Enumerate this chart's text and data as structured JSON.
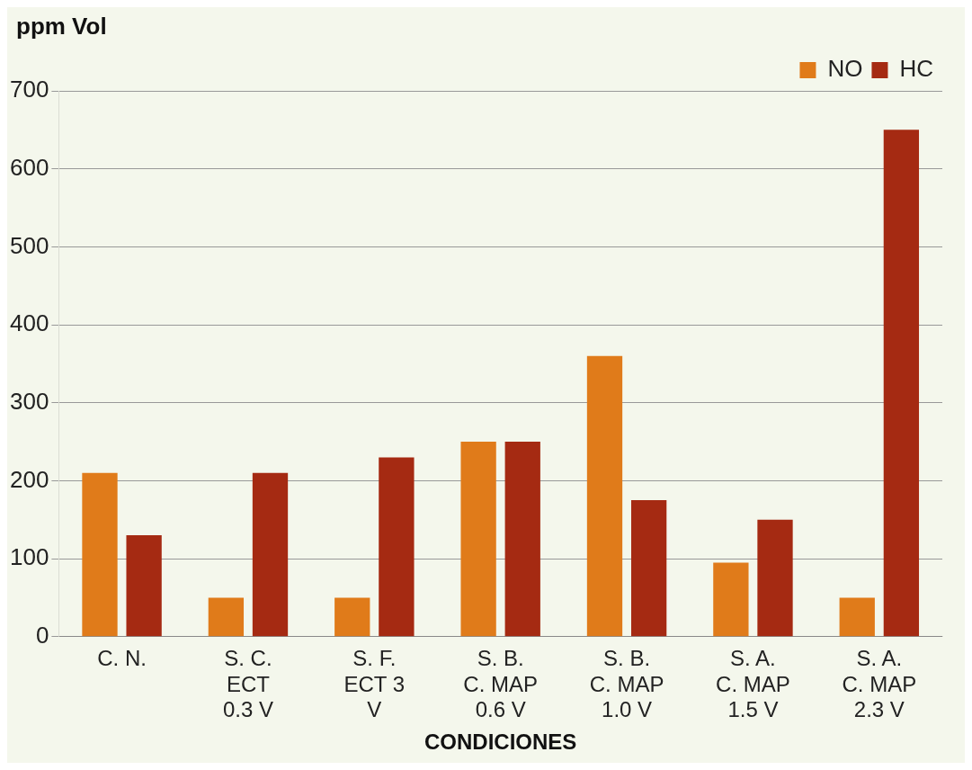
{
  "chart_data": {
    "type": "bar",
    "ylabel": "ppm Vol",
    "xlabel": "CONDICIONES",
    "categories": [
      "C. N.",
      "S. C. ECT 0.3 V",
      "S. F. ECT 3 V",
      "S. B. C. MAP 0.6 V",
      "S. B. C. MAP 1.0 V",
      "S. A. C. MAP 1.5 V",
      "S. A. C. MAP 2.3 V"
    ],
    "series": [
      {
        "name": "NO",
        "color": "#e07b1a",
        "values": [
          210,
          50,
          50,
          250,
          360,
          95,
          50
        ]
      },
      {
        "name": "HC",
        "color": "#a52a12",
        "values": [
          130,
          210,
          230,
          250,
          175,
          150,
          650
        ]
      }
    ],
    "ylim": [
      0,
      700
    ],
    "yticks": [
      0,
      100,
      200,
      300,
      400,
      500,
      600,
      700
    ],
    "grid": "y",
    "legend": "top right"
  }
}
